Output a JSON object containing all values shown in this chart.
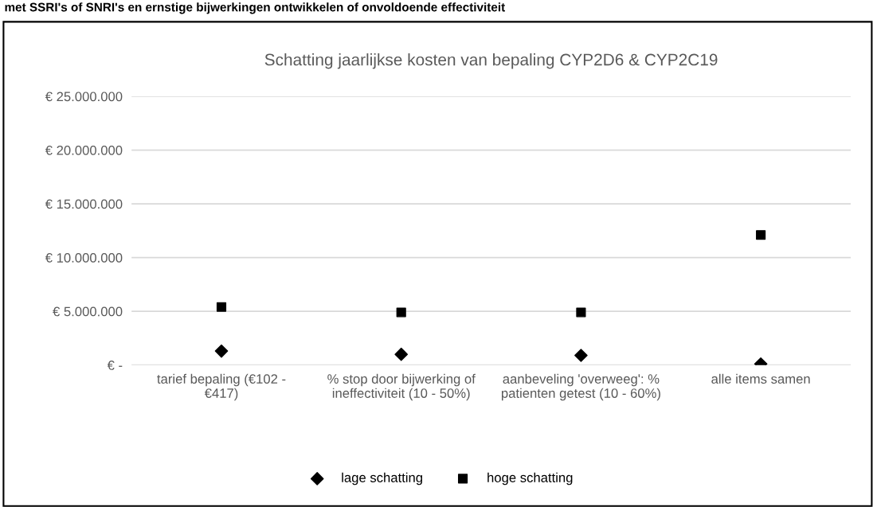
{
  "chart_data": {
    "type": "scatter",
    "title": "Schatting jaarlijkse kosten van bepaling CYP2D6 & CYP2C19",
    "annotations": [
      "met SSRI's of SNRI's en ernstige bijwerkingen ontwikkelen of onvoldoende effectiviteit"
    ],
    "categories": [
      "tarief bepaling (€102 - €417)",
      "% stop door bijwerking of ineffectiviteit (10 - 50%)",
      "aanbeveling 'overweeg': % patienten getest (10 - 60%)",
      "alle items samen"
    ],
    "series": [
      {
        "name": "lage schatting",
        "color": "#000000",
        "marker": "diamond",
        "values": [
          1300000,
          1000000,
          900000,
          100000
        ]
      },
      {
        "name": "hoge schatting",
        "color": "#000000",
        "marker": "square",
        "values": [
          5400000,
          4900000,
          4900000,
          12100000
        ]
      }
    ],
    "ylim": [
      0,
      25000000
    ],
    "yticks": [
      {
        "value": 0,
        "label": "€ -"
      },
      {
        "value": 5000000,
        "label": "€ 5.000.000"
      },
      {
        "value": 10000000,
        "label": "€ 10.000.000"
      },
      {
        "value": 15000000,
        "label": "€ 15.000.000"
      },
      {
        "value": 20000000,
        "label": "€ 20.000.000"
      },
      {
        "value": 25000000,
        "label": "€ 25.000.000"
      }
    ],
    "grid": "y",
    "legend": "bottom"
  }
}
